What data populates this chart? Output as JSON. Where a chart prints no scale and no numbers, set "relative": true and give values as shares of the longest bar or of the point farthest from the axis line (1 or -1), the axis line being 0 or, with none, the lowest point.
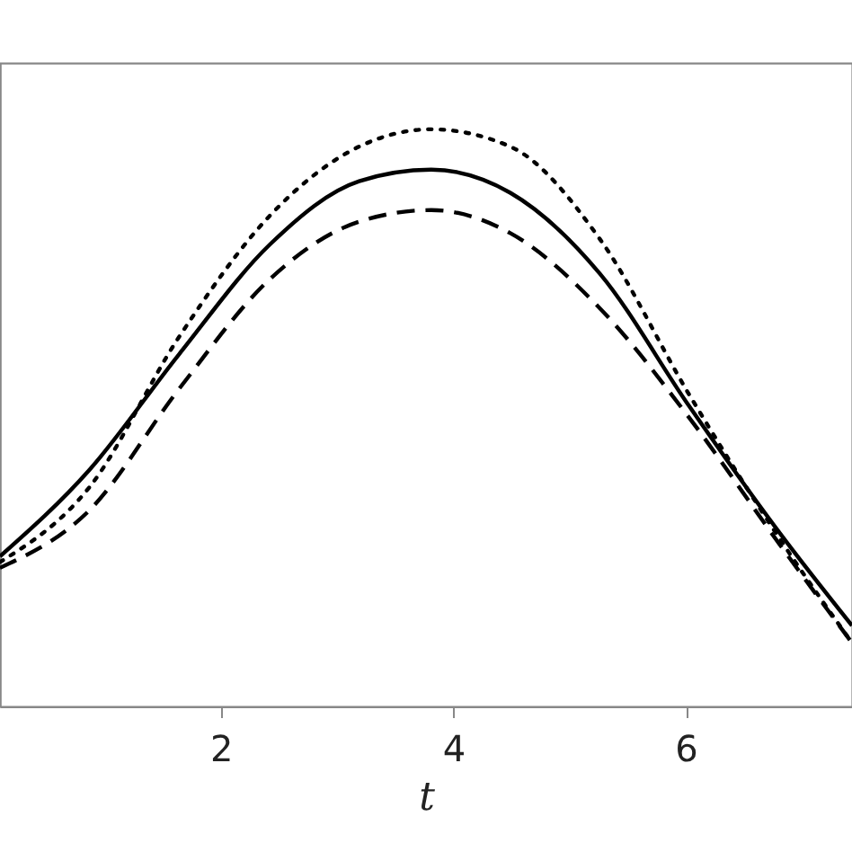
{
  "chart_data": {
    "type": "line",
    "relative": true,
    "xlabel": "t",
    "xlim": [
      0.1,
      7.43
    ],
    "xticks": [
      2,
      4,
      6
    ],
    "x": [
      0.1,
      0.87,
      1.64,
      2.42,
      3.19,
      3.81,
      4.49,
      5.26,
      6.03,
      6.81,
      7.43
    ],
    "grid": false,
    "series": [
      {
        "color": "#000000",
        "line_style": "solid",
        "values": [
          0.26,
          0.41,
          0.61,
          0.8,
          0.91,
          0.93,
          0.89,
          0.75,
          0.52,
          0.3,
          0.14
        ]
      },
      {
        "color": "#000000",
        "line_style": "dashed",
        "values": [
          0.24,
          0.34,
          0.55,
          0.74,
          0.84,
          0.86,
          0.82,
          0.69,
          0.5,
          0.28,
          0.11
        ]
      },
      {
        "color": "#000000",
        "line_style": "dotted",
        "values": [
          0.25,
          0.38,
          0.64,
          0.85,
          0.97,
          1,
          0.97,
          0.81,
          0.54,
          0.29,
          0.11
        ]
      }
    ]
  }
}
